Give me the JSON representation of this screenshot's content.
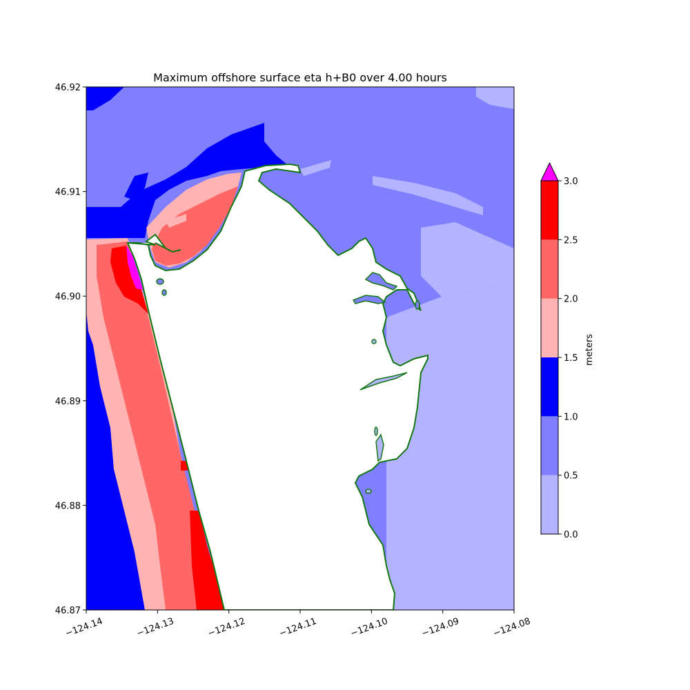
{
  "chart_data": {
    "type": "heatmap",
    "title": "Maximum offshore surface eta h+B0 over 4.00 hours",
    "xlim": [
      -124.14,
      -124.08
    ],
    "ylim": [
      46.87,
      46.92
    ],
    "x_ticks": [
      "−124.14",
      "−124.13",
      "−124.12",
      "−124.11",
      "−124.10",
      "−124.09",
      "−124.08"
    ],
    "y_ticks": [
      "46.87",
      "46.88",
      "46.89",
      "46.90",
      "46.91",
      "46.92"
    ],
    "colorbar": {
      "label": "meters",
      "ticks": [
        "0.0",
        "0.5",
        "1.0",
        "1.5",
        "2.0",
        "2.5",
        "3.0"
      ],
      "levels": [
        0.0,
        0.5,
        1.0,
        1.5,
        2.0,
        2.5,
        3.0
      ],
      "colors": [
        "#b3b3ff",
        "#8080ff",
        "#0000ff",
        "#ffb3b3",
        "#ff6666",
        "#ff0000"
      ],
      "extend_max_color": "#ff00ff"
    },
    "land_color": "#ffffff",
    "shoreline_color": "#117711",
    "grid": false
  }
}
